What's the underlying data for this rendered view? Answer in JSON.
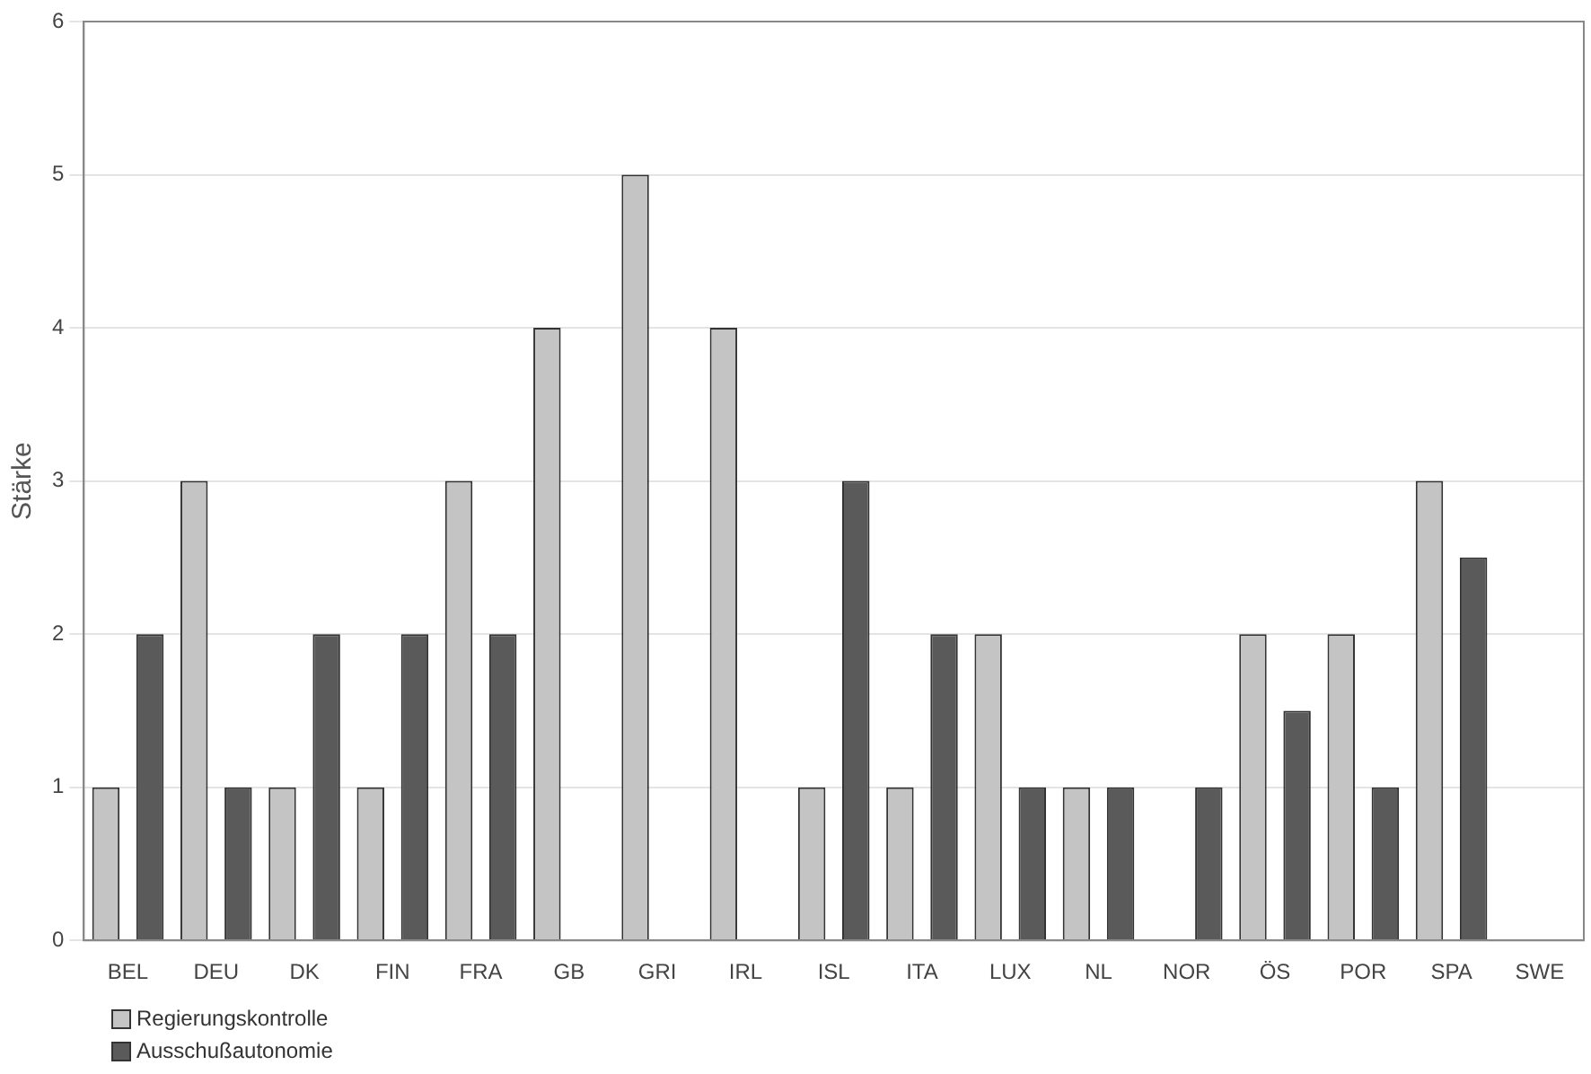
{
  "chart_data": {
    "type": "bar",
    "ylabel": "Stärke",
    "categories": [
      "BEL",
      "DEU",
      "DK",
      "FIN",
      "FRA",
      "GB",
      "GRI",
      "IRL",
      "ISL",
      "ITA",
      "LUX",
      "NL",
      "NOR",
      "ÖS",
      "POR",
      "SPA",
      "SWE"
    ],
    "series": [
      {
        "name": "Regierungskontrolle",
        "color": "#c4c4c4",
        "values": [
          1,
          3,
          1,
          1,
          3,
          4,
          5,
          4,
          1,
          1,
          2,
          1,
          0,
          2,
          2,
          3,
          0
        ]
      },
      {
        "name": "Ausschußautonomie",
        "color": "#5a5a5a",
        "values": [
          2,
          1,
          2,
          2,
          2,
          0,
          0,
          0,
          3,
          2,
          1,
          1,
          1,
          1.5,
          1,
          2.5,
          0
        ]
      }
    ],
    "ylim": [
      0,
      6
    ],
    "yticks": [
      0,
      1,
      2,
      3,
      4,
      5,
      6
    ],
    "grid": "y",
    "legend": "bottom left"
  }
}
